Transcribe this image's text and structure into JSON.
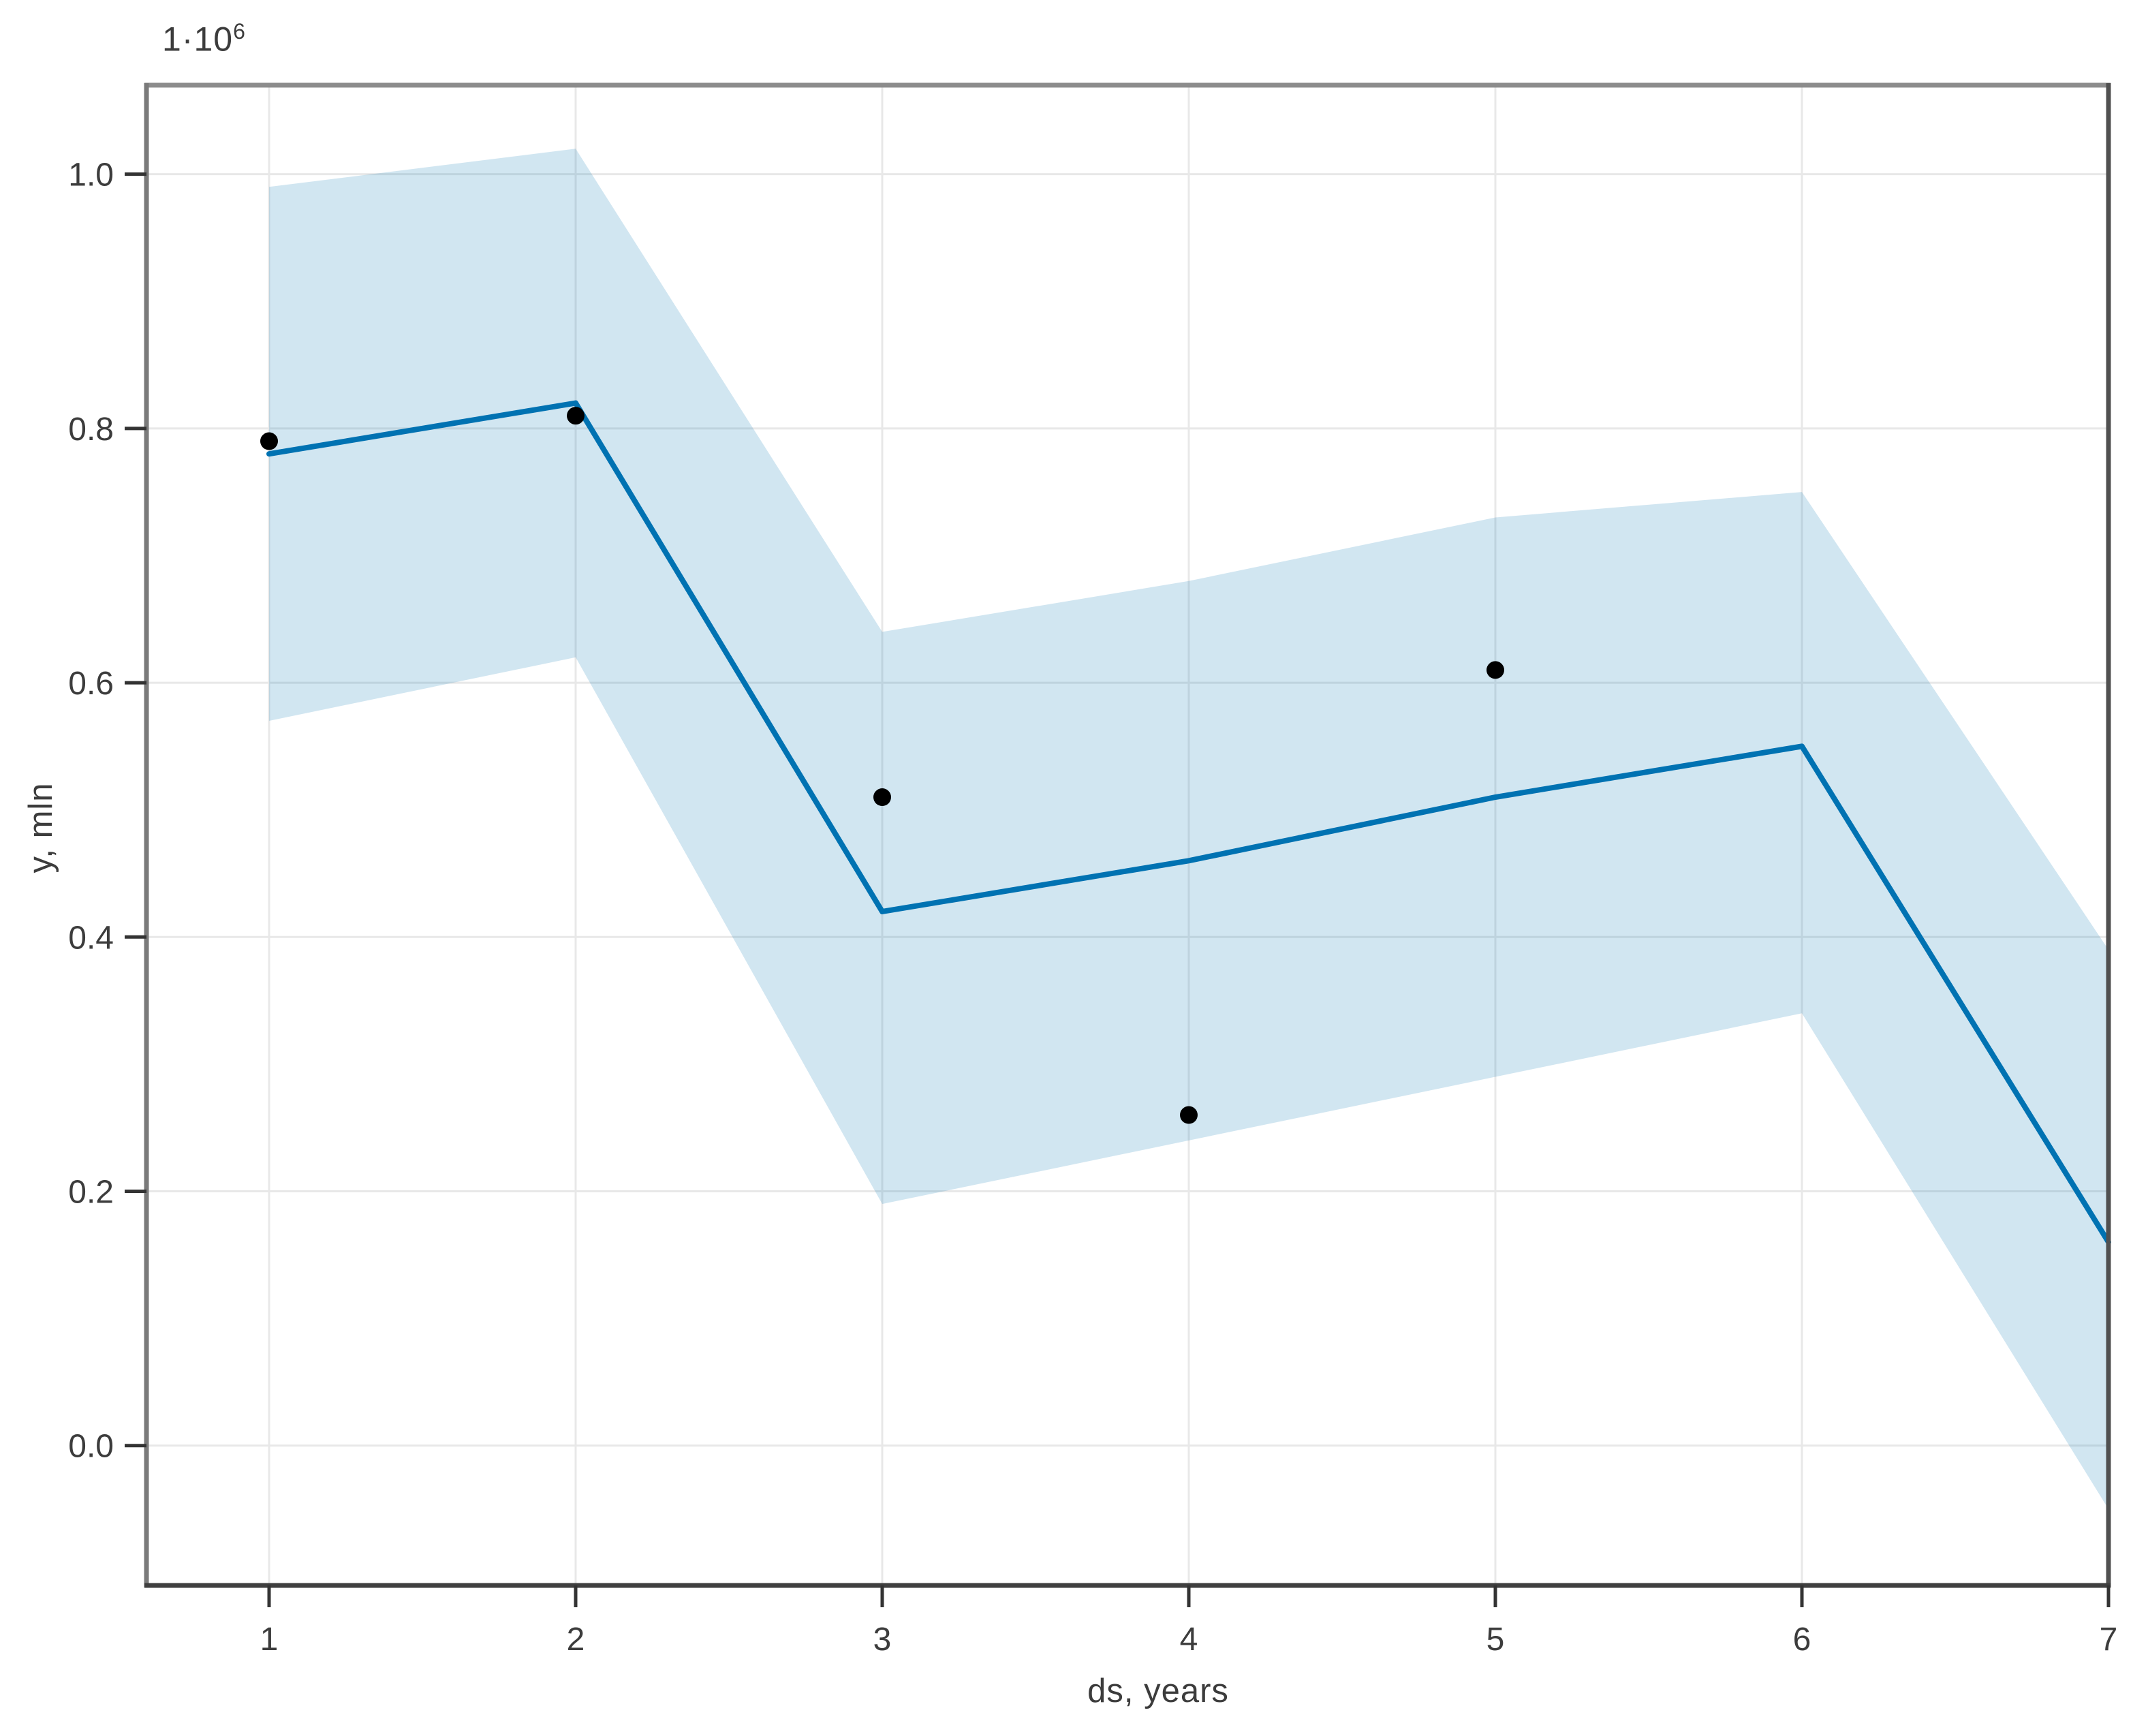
{
  "figure": {
    "title": "",
    "xlabel": "ds, years",
    "ylabel": "y, mln",
    "y_offset_base": "1·10",
    "y_offset_exponent": "6"
  },
  "chart_data": {
    "type": "line",
    "title": "",
    "xlabel": "ds, years",
    "ylabel": "y, mln",
    "y_scale_offset_text": "1·10⁶",
    "y_unit_multiplier": 1000000,
    "x": [
      1,
      2,
      3,
      4,
      5,
      6,
      7
    ],
    "series": [
      {
        "name": "forecast-line-yhat",
        "kind": "line",
        "color": "#0072B2",
        "x": [
          1,
          2,
          3,
          4,
          5,
          6,
          7
        ],
        "values": [
          0.78,
          0.82,
          0.42,
          0.46,
          0.51,
          0.55,
          0.16
        ]
      },
      {
        "name": "uncertainty-band-upper",
        "kind": "band-upper",
        "color": "rgba(0,114,178,0.18)",
        "x": [
          1,
          2,
          3,
          4,
          5,
          6,
          7
        ],
        "values": [
          0.99,
          1.02,
          0.64,
          0.68,
          0.73,
          0.75,
          0.39
        ]
      },
      {
        "name": "uncertainty-band-lower",
        "kind": "band-lower",
        "color": "rgba(0,114,178,0.18)",
        "x": [
          1,
          2,
          3,
          4,
          5,
          6,
          7
        ],
        "values": [
          0.57,
          0.62,
          0.19,
          0.24,
          0.29,
          0.34,
          -0.05
        ]
      },
      {
        "name": "observed-points",
        "kind": "scatter",
        "color": "#000000",
        "x": [
          1,
          2,
          3,
          4,
          5
        ],
        "values": [
          0.79,
          0.81,
          0.51,
          0.26,
          0.61
        ]
      }
    ],
    "x_ticks": [
      1,
      2,
      3,
      4,
      5,
      6,
      7
    ],
    "y_ticks": [
      0.0,
      0.2,
      0.4,
      0.6,
      0.8,
      1.0
    ],
    "xlim": [
      0.6,
      7.0
    ],
    "ylim": [
      -0.11,
      1.07
    ],
    "grid": true,
    "legend_position": "none",
    "colors": {
      "grid": "#e8e8e8",
      "frame_top": "#8c8c8c",
      "frame_left": "#7a7a7a",
      "frame_right": "#505050",
      "frame_bottom": "#3f3f3f",
      "tick": "#333333",
      "tick_label": "#3c3c3c",
      "background": "#ffffff"
    }
  }
}
